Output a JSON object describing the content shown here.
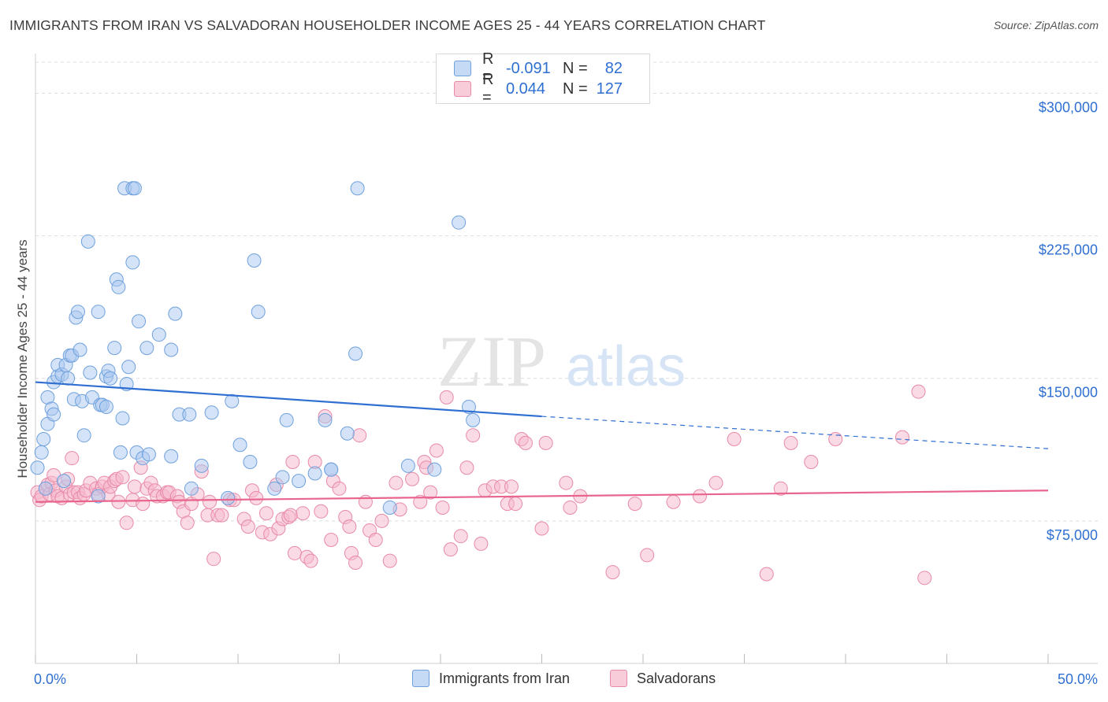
{
  "header": {
    "title": "IMMIGRANTS FROM IRAN VS SALVADORAN HOUSEHOLDER INCOME AGES 25 - 44 YEARS CORRELATION CHART",
    "source": "Source: ZipAtlas.com"
  },
  "watermark": {
    "zip": "ZIP",
    "atlas": "atlas"
  },
  "legend": {
    "rows": [
      {
        "r_label": "R =",
        "r_value": "-0.091",
        "n_label": "N =",
        "n_value": "82",
        "color": "#a9c8f0"
      },
      {
        "r_label": "R =",
        "r_value": "0.044",
        "n_label": "N =",
        "n_value": "127",
        "color": "#f5b8cb"
      }
    ]
  },
  "bottom_legend": [
    {
      "label": "Immigrants from Iran",
      "color": "#a9c8f0"
    },
    {
      "label": "Salvadorans",
      "color": "#f5b8cb"
    }
  ],
  "chart_data": {
    "type": "scatter",
    "xlabel": "",
    "ylabel": "Householder Income Ages 25 - 44 years",
    "xlim": [
      0,
      50
    ],
    "ylim": [
      0,
      318000
    ],
    "x_tick_labels": [
      "0.0%",
      "50.0%"
    ],
    "y_ticks": [
      75000,
      150000,
      225000,
      300000
    ],
    "y_tick_labels": [
      "$75,000",
      "$150,000",
      "$225,000",
      "$300,000"
    ],
    "grid": true,
    "legend_position": "top-center",
    "series": [
      {
        "name": "Immigrants from Iran",
        "color": "#a9c8f0",
        "stroke": "#6fa1dd",
        "line_color": "#2f6fd1",
        "trend": {
          "x0": 0,
          "y0": 148000,
          "x1": 25,
          "y1": 130000,
          "x_end": 50,
          "y_end": 113000
        },
        "points": [
          [
            0.1,
            103000
          ],
          [
            0.3,
            111000
          ],
          [
            0.4,
            118000
          ],
          [
            0.5,
            92000
          ],
          [
            0.6,
            126000
          ],
          [
            0.6,
            140000
          ],
          [
            0.8,
            134000
          ],
          [
            0.9,
            131000
          ],
          [
            0.9,
            148000
          ],
          [
            1.1,
            151000
          ],
          [
            1.1,
            157000
          ],
          [
            1.3,
            152000
          ],
          [
            1.4,
            96000
          ],
          [
            1.5,
            157000
          ],
          [
            1.6,
            150000
          ],
          [
            1.7,
            162000
          ],
          [
            1.8,
            162000
          ],
          [
            1.9,
            139000
          ],
          [
            2.0,
            182000
          ],
          [
            2.1,
            185000
          ],
          [
            2.2,
            165000
          ],
          [
            2.3,
            138000
          ],
          [
            2.4,
            120000
          ],
          [
            2.6,
            222000
          ],
          [
            2.7,
            153000
          ],
          [
            2.8,
            140000
          ],
          [
            3.1,
            88000
          ],
          [
            3.1,
            185000
          ],
          [
            3.2,
            136000
          ],
          [
            3.3,
            136000
          ],
          [
            3.5,
            135000
          ],
          [
            3.5,
            151000
          ],
          [
            3.6,
            154000
          ],
          [
            3.7,
            150000
          ],
          [
            3.9,
            166000
          ],
          [
            4.0,
            202000
          ],
          [
            4.1,
            198000
          ],
          [
            4.2,
            111000
          ],
          [
            4.3,
            129000
          ],
          [
            4.4,
            250000
          ],
          [
            4.5,
            147000
          ],
          [
            4.6,
            156000
          ],
          [
            4.8,
            250000
          ],
          [
            4.8,
            211000
          ],
          [
            4.9,
            250000
          ],
          [
            5.0,
            111000
          ],
          [
            5.1,
            180000
          ],
          [
            5.3,
            108000
          ],
          [
            5.5,
            166000
          ],
          [
            5.6,
            110000
          ],
          [
            6.1,
            173000
          ],
          [
            6.7,
            109000
          ],
          [
            6.7,
            165000
          ],
          [
            6.9,
            184000
          ],
          [
            7.1,
            131000
          ],
          [
            7.6,
            131000
          ],
          [
            7.7,
            92000
          ],
          [
            8.2,
            104000
          ],
          [
            8.7,
            132000
          ],
          [
            9.5,
            87000
          ],
          [
            9.7,
            138000
          ],
          [
            10.1,
            115000
          ],
          [
            10.6,
            106000
          ],
          [
            10.8,
            212000
          ],
          [
            11.0,
            185000
          ],
          [
            11.8,
            92000
          ],
          [
            12.2,
            98000
          ],
          [
            12.4,
            128000
          ],
          [
            13.0,
            96000
          ],
          [
            13.8,
            100000
          ],
          [
            14.3,
            128000
          ],
          [
            14.6,
            102000
          ],
          [
            14.6,
            102000
          ],
          [
            15.4,
            121000
          ],
          [
            15.8,
            163000
          ],
          [
            15.9,
            250000
          ],
          [
            17.5,
            82000
          ],
          [
            18.4,
            104000
          ],
          [
            19.7,
            102000
          ],
          [
            20.9,
            232000
          ],
          [
            21.4,
            135000
          ],
          [
            21.6,
            128000
          ]
        ]
      },
      {
        "name": "Salvadorans",
        "color": "#f5b8cb",
        "stroke": "#e88aa8",
        "line_color": "#e8658e",
        "trend": {
          "x0": 0,
          "y0": 85000,
          "x1": 50,
          "y1": 91000
        },
        "points": [
          [
            0.1,
            90000
          ],
          [
            0.2,
            86000
          ],
          [
            0.3,
            88000
          ],
          [
            0.5,
            92000
          ],
          [
            0.6,
            94000
          ],
          [
            0.7,
            89000
          ],
          [
            0.8,
            95000
          ],
          [
            0.9,
            99000
          ],
          [
            1.0,
            91000
          ],
          [
            1.1,
            88000
          ],
          [
            1.3,
            87000
          ],
          [
            1.5,
            93000
          ],
          [
            1.6,
            97000
          ],
          [
            1.7,
            89000
          ],
          [
            1.8,
            108000
          ],
          [
            1.9,
            90000
          ],
          [
            2.1,
            90000
          ],
          [
            2.2,
            87000
          ],
          [
            2.4,
            89000
          ],
          [
            2.5,
            91000
          ],
          [
            2.7,
            95000
          ],
          [
            3.0,
            92000
          ],
          [
            3.1,
            89000
          ],
          [
            3.3,
            93000
          ],
          [
            3.4,
            95000
          ],
          [
            3.6,
            89000
          ],
          [
            3.7,
            93000
          ],
          [
            3.9,
            96000
          ],
          [
            4.0,
            97000
          ],
          [
            4.1,
            85000
          ],
          [
            4.3,
            98000
          ],
          [
            4.5,
            74000
          ],
          [
            4.8,
            86000
          ],
          [
            4.9,
            93000
          ],
          [
            5.2,
            103000
          ],
          [
            5.3,
            84000
          ],
          [
            5.5,
            92000
          ],
          [
            5.7,
            95000
          ],
          [
            5.9,
            91000
          ],
          [
            6.0,
            88000
          ],
          [
            6.3,
            88000
          ],
          [
            6.5,
            90000
          ],
          [
            6.6,
            90000
          ],
          [
            7.0,
            88000
          ],
          [
            7.1,
            85000
          ],
          [
            7.3,
            80000
          ],
          [
            7.5,
            74000
          ],
          [
            7.7,
            84000
          ],
          [
            8.0,
            89000
          ],
          [
            8.2,
            101000
          ],
          [
            8.5,
            78000
          ],
          [
            8.6,
            85000
          ],
          [
            8.8,
            55000
          ],
          [
            9.0,
            78000
          ],
          [
            9.2,
            78000
          ],
          [
            9.6,
            86000
          ],
          [
            9.8,
            86000
          ],
          [
            10.3,
            76000
          ],
          [
            10.5,
            72000
          ],
          [
            10.7,
            91000
          ],
          [
            10.9,
            87000
          ],
          [
            11.2,
            69000
          ],
          [
            11.4,
            79000
          ],
          [
            11.6,
            68000
          ],
          [
            11.9,
            94000
          ],
          [
            12.0,
            71000
          ],
          [
            12.2,
            76000
          ],
          [
            12.5,
            77000
          ],
          [
            12.6,
            78000
          ],
          [
            12.7,
            106000
          ],
          [
            12.8,
            58000
          ],
          [
            13.2,
            79000
          ],
          [
            13.4,
            56000
          ],
          [
            13.6,
            54000
          ],
          [
            13.8,
            106000
          ],
          [
            14.1,
            80000
          ],
          [
            14.3,
            130000
          ],
          [
            14.6,
            65000
          ],
          [
            14.7,
            96000
          ],
          [
            15.0,
            92000
          ],
          [
            15.3,
            77000
          ],
          [
            15.5,
            72000
          ],
          [
            15.6,
            58000
          ],
          [
            15.8,
            53000
          ],
          [
            16.0,
            120000
          ],
          [
            16.3,
            85000
          ],
          [
            16.5,
            70000
          ],
          [
            16.8,
            65000
          ],
          [
            17.1,
            75000
          ],
          [
            17.5,
            54000
          ],
          [
            17.8,
            95000
          ],
          [
            18.0,
            81000
          ],
          [
            18.6,
            97000
          ],
          [
            19.0,
            85000
          ],
          [
            19.2,
            106000
          ],
          [
            19.3,
            103000
          ],
          [
            19.5,
            90000
          ],
          [
            19.8,
            112000
          ],
          [
            20.1,
            82000
          ],
          [
            20.3,
            140000
          ],
          [
            20.5,
            60000
          ],
          [
            21.0,
            67000
          ],
          [
            21.3,
            103000
          ],
          [
            21.6,
            120000
          ],
          [
            22.0,
            63000
          ],
          [
            22.2,
            91000
          ],
          [
            22.6,
            93000
          ],
          [
            23.0,
            93000
          ],
          [
            23.3,
            84000
          ],
          [
            23.5,
            93000
          ],
          [
            23.7,
            84000
          ],
          [
            24.0,
            118000
          ],
          [
            24.2,
            116000
          ],
          [
            25.0,
            71000
          ],
          [
            25.2,
            116000
          ],
          [
            26.2,
            95000
          ],
          [
            26.4,
            82000
          ],
          [
            26.9,
            88000
          ],
          [
            28.5,
            48000
          ],
          [
            29.6,
            84000
          ],
          [
            30.2,
            57000
          ],
          [
            31.5,
            85000
          ],
          [
            32.8,
            88000
          ],
          [
            33.6,
            95000
          ],
          [
            34.5,
            118000
          ],
          [
            36.1,
            47000
          ],
          [
            36.8,
            92000
          ],
          [
            37.3,
            116000
          ],
          [
            38.3,
            106000
          ],
          [
            39.5,
            118000
          ],
          [
            42.8,
            119000
          ],
          [
            43.6,
            143000
          ],
          [
            43.9,
            45000
          ]
        ]
      }
    ]
  }
}
